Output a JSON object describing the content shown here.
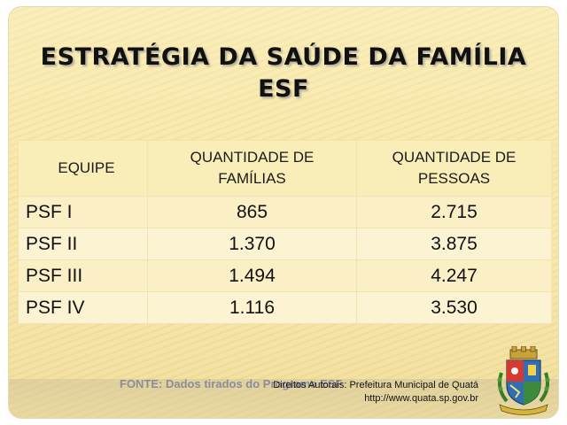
{
  "title": {
    "line1": "ESTRATÉGIA DA SAÚDE DA FAMÍLIA",
    "line2": "ESF"
  },
  "table": {
    "headers": [
      "EQUIPE",
      "QUANTIDADE DE FAMÍLIAS",
      "QUANTIDADE DE PESSOAS"
    ],
    "header_lines": {
      "col2_line1": "QUANTIDADE DE",
      "col2_line2": "FAMÍLIAS",
      "col3_line1": "QUANTIDADE DE",
      "col3_line2": "PESSOAS"
    },
    "rows": [
      {
        "equipe": "PSF I",
        "familias": "865",
        "pessoas": "2.715"
      },
      {
        "equipe": "PSF II",
        "familias": "1.370",
        "pessoas": "3.875"
      },
      {
        "equipe": "PSF III",
        "familias": "1.494",
        "pessoas": "4.247"
      },
      {
        "equipe": "PSF IV",
        "familias": "1.116",
        "pessoas": "3.530"
      }
    ]
  },
  "footer": {
    "fonte": "FONTE:  Dados tirados do Programa ESF",
    "copyright_line1": "Direitos Autorais: Prefeitura Municipal de Quatá",
    "copyright_line2": "http://www.quata.sp.gov.br"
  },
  "colors": {
    "background": "#f6e6a6",
    "header_row": "#faeeb8",
    "text": "#111111"
  },
  "icons": {
    "logo": "municipal-coat-of-arms"
  }
}
